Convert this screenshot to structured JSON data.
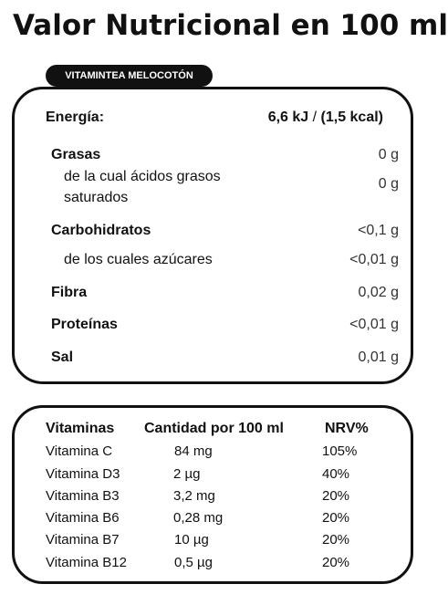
{
  "title": "Valor Nutricional en 100 ml",
  "product": "VITAMINTEA MELOCOTÓN",
  "energy": {
    "label": "Energía:",
    "kj": "6,6 kJ",
    "sep": " / ",
    "kcal": "(1,5 kcal)"
  },
  "nutrients": [
    {
      "label": "Grasas",
      "value": "0 g"
    },
    {
      "label_line1": "de la cual ácidos grasos",
      "label_line2": "saturados",
      "value": "0 g"
    },
    {
      "label": "Carbohidratos",
      "value": "<0,1 g"
    },
    {
      "label": "de los cuales azúcares",
      "value": "<0,01 g"
    },
    {
      "label": "Fibra",
      "value": "0,02 g"
    },
    {
      "label": "Proteínas",
      "value": "<0,01 g"
    },
    {
      "label": "Sal",
      "value": "0,01 g"
    }
  ],
  "vitamins": {
    "headers": [
      "Vitaminas",
      "Cantidad por 100 ml",
      "NRV%"
    ],
    "rows": [
      [
        "Vitamina C",
        "84 mg",
        "105%"
      ],
      [
        "Vitamina D3",
        "2 µg",
        "40%"
      ],
      [
        "Vitamina B3",
        "3,2 mg",
        "20%"
      ],
      [
        "Vitamina B6",
        "0,28 mg",
        "20%"
      ],
      [
        "Vitamina B7",
        "10 µg",
        "20%"
      ],
      [
        "Vitamina B12",
        "0,5 µg",
        "20%"
      ]
    ]
  }
}
